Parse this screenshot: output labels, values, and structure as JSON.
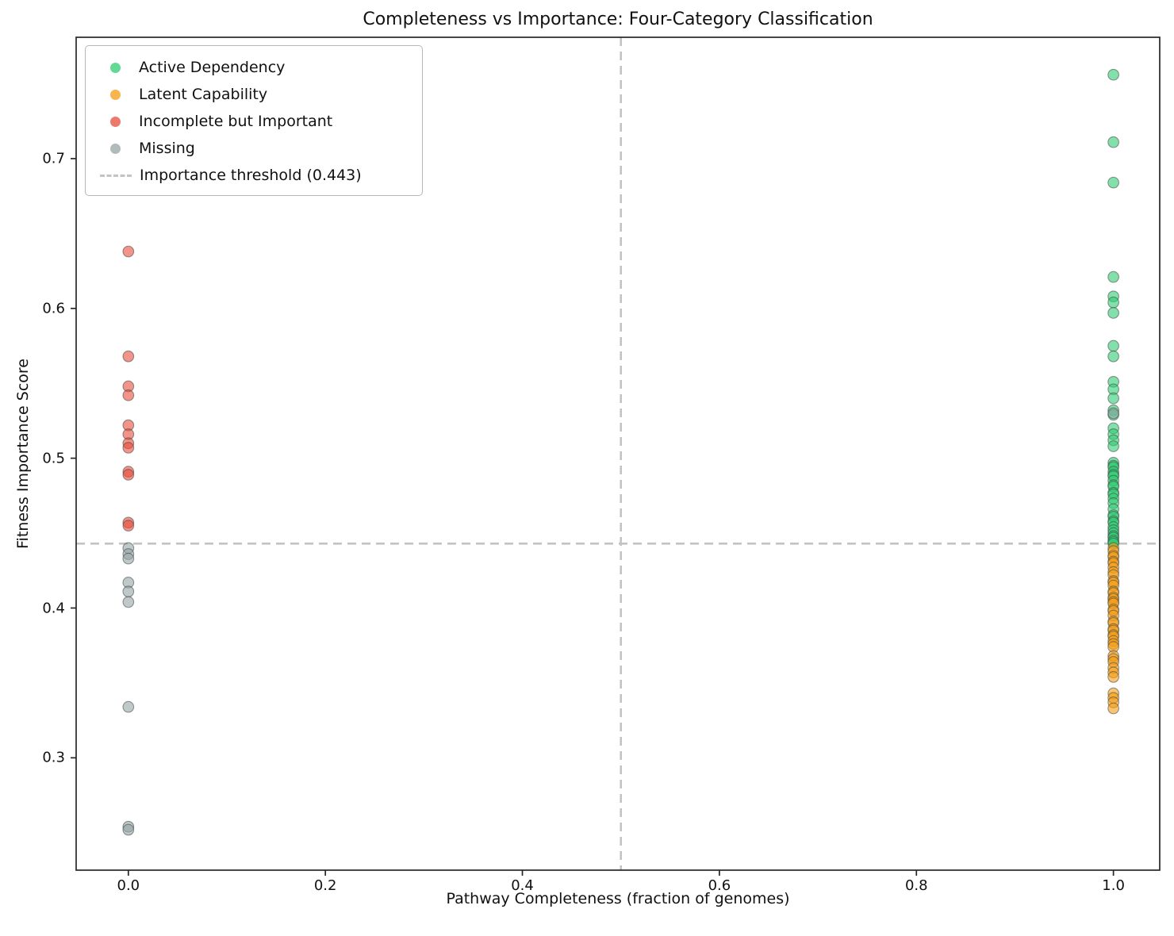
{
  "accent_colors": {
    "green_fill": "rgba(46,204,113,0.6)",
    "orange_fill": "rgba(243,156,18,0.6)",
    "red_fill": "rgba(231,76,60,0.6)",
    "gray_fill": "rgba(149,165,166,0.6)",
    "marker_edge": "rgba(68,68,68,0.55)",
    "threshold_line": "#c3c3c3",
    "spine": "#262626"
  },
  "legend": {
    "items": [
      {
        "label": "Active Dependency",
        "marker": "circle",
        "color": "rgba(46,204,113,0.75)"
      },
      {
        "label": "Latent Capability",
        "marker": "circle",
        "color": "rgba(243,156,18,0.75)"
      },
      {
        "label": "Incomplete but Important",
        "marker": "circle",
        "color": "rgba(231,76,60,0.75)"
      },
      {
        "label": "Missing",
        "marker": "circle",
        "color": "rgba(149,165,166,0.75)"
      },
      {
        "label": "Importance threshold (0.443)",
        "marker": "dash",
        "color": "#c3c3c3"
      }
    ]
  },
  "chart_data": {
    "type": "scatter",
    "title": "Completeness vs Importance: Four-Category Classification",
    "xlabel": "Pathway Completeness (fraction of genomes)",
    "ylabel": "Fitness Importance Score",
    "xlim": [
      -0.053,
      1.047
    ],
    "ylim": [
      0.225,
      0.781
    ],
    "grid": false,
    "legend_position": "upper-left",
    "xticks": {
      "values": [
        0.0,
        0.2,
        0.4,
        0.6,
        0.8,
        1.0
      ],
      "labels": [
        "0.0",
        "0.2",
        "0.4",
        "0.6",
        "0.8",
        "1.0"
      ]
    },
    "yticks": {
      "values": [
        0.3,
        0.4,
        0.5,
        0.6,
        0.7
      ],
      "labels": [
        "0.3",
        "0.4",
        "0.5",
        "0.6",
        "0.7"
      ]
    },
    "thresholds": {
      "importance_y": 0.443,
      "completeness_x": 0.5,
      "importance_label": "Importance threshold (0.443)"
    },
    "series": [
      {
        "id": "active-dependency",
        "name": "Active Dependency",
        "fill": "rgba(46,204,113,0.6)",
        "points": [
          [
            1.0,
            0.756
          ],
          [
            1.0,
            0.711
          ],
          [
            1.0,
            0.684
          ],
          [
            1.0,
            0.621
          ],
          [
            1.0,
            0.608
          ],
          [
            1.0,
            0.604
          ],
          [
            1.0,
            0.597
          ],
          [
            1.0,
            0.575
          ],
          [
            1.0,
            0.568
          ],
          [
            1.0,
            0.551
          ],
          [
            1.0,
            0.546
          ],
          [
            1.0,
            0.54
          ],
          [
            1.0,
            0.532
          ],
          [
            1.0,
            0.529
          ],
          [
            1.0,
            0.52
          ],
          [
            1.0,
            0.516
          ],
          [
            1.0,
            0.512
          ],
          [
            1.0,
            0.508
          ],
          [
            1.0,
            0.497
          ],
          [
            1.0,
            0.495
          ],
          [
            1.0,
            0.494
          ],
          [
            1.0,
            0.491
          ],
          [
            1.0,
            0.489
          ],
          [
            1.0,
            0.488
          ],
          [
            1.0,
            0.485
          ],
          [
            1.0,
            0.482
          ],
          [
            1.0,
            0.481
          ],
          [
            1.0,
            0.477
          ],
          [
            1.0,
            0.476
          ],
          [
            1.0,
            0.473
          ],
          [
            1.0,
            0.47
          ],
          [
            1.0,
            0.466
          ],
          [
            1.0,
            0.462
          ],
          [
            1.0,
            0.461
          ],
          [
            1.0,
            0.458
          ],
          [
            1.0,
            0.457
          ],
          [
            1.0,
            0.454
          ],
          [
            1.0,
            0.452
          ],
          [
            1.0,
            0.45
          ],
          [
            1.0,
            0.448
          ],
          [
            1.0,
            0.447
          ],
          [
            1.0,
            0.445
          ],
          [
            1.0,
            0.444
          ],
          [
            1.0,
            0.443
          ]
        ]
      },
      {
        "id": "latent-capability",
        "name": "Latent Capability",
        "fill": "rgba(243,156,18,0.6)",
        "points": [
          [
            1.0,
            0.44
          ],
          [
            1.0,
            0.438
          ],
          [
            1.0,
            0.435
          ],
          [
            1.0,
            0.434
          ],
          [
            1.0,
            0.431
          ],
          [
            1.0,
            0.43
          ],
          [
            1.0,
            0.427
          ],
          [
            1.0,
            0.424
          ],
          [
            1.0,
            0.422
          ],
          [
            1.0,
            0.418
          ],
          [
            1.0,
            0.417
          ],
          [
            1.0,
            0.415
          ],
          [
            1.0,
            0.411
          ],
          [
            1.0,
            0.41
          ],
          [
            1.0,
            0.407
          ],
          [
            1.0,
            0.406
          ],
          [
            1.0,
            0.404
          ],
          [
            1.0,
            0.403
          ],
          [
            1.0,
            0.399
          ],
          [
            1.0,
            0.398
          ],
          [
            1.0,
            0.395
          ],
          [
            1.0,
            0.391
          ],
          [
            1.0,
            0.39
          ],
          [
            1.0,
            0.386
          ],
          [
            1.0,
            0.385
          ],
          [
            1.0,
            0.382
          ],
          [
            1.0,
            0.381
          ],
          [
            1.0,
            0.378
          ],
          [
            1.0,
            0.376
          ],
          [
            1.0,
            0.374
          ],
          [
            1.0,
            0.368
          ],
          [
            1.0,
            0.366
          ],
          [
            1.0,
            0.364
          ],
          [
            1.0,
            0.36
          ],
          [
            1.0,
            0.357
          ],
          [
            1.0,
            0.354
          ],
          [
            1.0,
            0.343
          ],
          [
            1.0,
            0.34
          ],
          [
            1.0,
            0.337
          ],
          [
            1.0,
            0.333
          ]
        ]
      },
      {
        "id": "incomplete-but-important",
        "name": "Incomplete but Important",
        "fill": "rgba(231,76,60,0.6)",
        "points": [
          [
            0.0,
            0.638
          ],
          [
            0.0,
            0.568
          ],
          [
            0.0,
            0.548
          ],
          [
            0.0,
            0.542
          ],
          [
            0.0,
            0.522
          ],
          [
            0.0,
            0.516
          ],
          [
            0.0,
            0.51
          ],
          [
            0.0,
            0.507
          ],
          [
            0.0,
            0.491
          ],
          [
            0.0,
            0.489
          ],
          [
            0.0,
            0.457
          ],
          [
            0.0,
            0.455
          ]
        ]
      },
      {
        "id": "missing",
        "name": "Missing",
        "fill": "rgba(149,165,166,0.6)",
        "points": [
          [
            0.0,
            0.44
          ],
          [
            0.0,
            0.436
          ],
          [
            0.0,
            0.433
          ],
          [
            0.0,
            0.417
          ],
          [
            0.0,
            0.411
          ],
          [
            0.0,
            0.404
          ],
          [
            0.0,
            0.334
          ],
          [
            0.0,
            0.254
          ],
          [
            0.0,
            0.252
          ],
          [
            1.0,
            0.53
          ]
        ]
      }
    ]
  }
}
